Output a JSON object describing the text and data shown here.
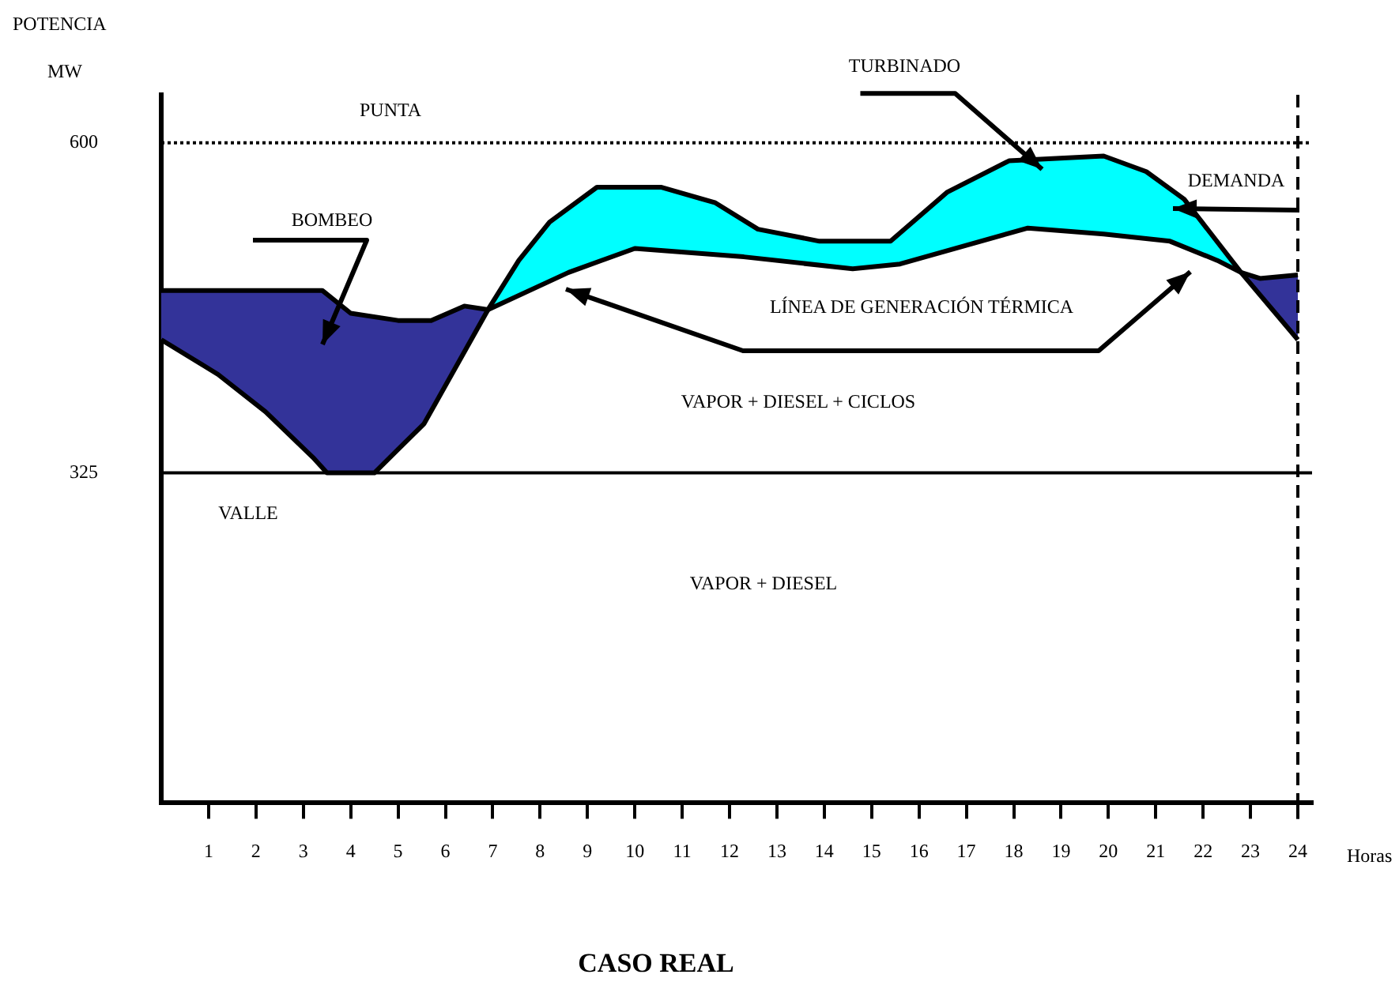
{
  "chart_data": {
    "type": "line",
    "title": "CASO REAL",
    "xlabel": "Horas",
    "ylabel": "POTENCIA\nMW",
    "xlim": [
      0,
      24.3
    ],
    "xticks": [
      1,
      2,
      3,
      4,
      5,
      6,
      7,
      8,
      9,
      10,
      11,
      12,
      13,
      14,
      15,
      16,
      17,
      18,
      19,
      20,
      21,
      22,
      23,
      24
    ],
    "ylim": [
      50,
      640
    ],
    "yticks": [
      325,
      600
    ],
    "grid": false,
    "legend": false,
    "marker": "none",
    "series": [
      {
        "color": "#000000",
        "colors": [
          "#333399",
          "#333399",
          "#333399",
          "#333399",
          "#333399",
          "#333399",
          "#333399",
          "#00ffff",
          "#00ffff",
          "#00ffff",
          "#00ffff",
          "#00ffff",
          "#00ffff",
          "#00ffff",
          "#00ffff",
          "#00ffff",
          "#00ffff",
          "#00ffff",
          "#00ffff",
          "#00ffff",
          "#00ffff",
          "#00ffff",
          "#333399"
        ],
        "x": [
          0,
          1.2,
          2.2,
          3.2,
          3.5,
          4.5,
          5.55,
          6.9,
          7.55,
          8.2,
          9.2,
          10.55,
          11.7,
          12.6,
          13.9,
          15.4,
          16.6,
          17.9,
          19.9,
          20.8,
          21.6,
          22.8,
          24
        ],
        "values": [
          436,
          407,
          376,
          338,
          325,
          325,
          366,
          461,
          502,
          534,
          563,
          563,
          550,
          528,
          518,
          518,
          559,
          585,
          589,
          576,
          553,
          492,
          436
        ]
      },
      {
        "color": "#000000",
        "x": [
          0,
          3.4,
          4,
          5,
          5.7,
          6.4,
          6.9,
          8.6,
          10,
          12.3,
          14.6,
          15.6,
          18.3,
          19.9,
          21.3,
          22.3,
          22.8,
          23.2,
          24
        ],
        "values": [
          477,
          477,
          458,
          452,
          452,
          464,
          461,
          492,
          512,
          505,
          495,
          499,
          529,
          524,
          518,
          502,
          492,
          487,
          490
        ]
      }
    ],
    "ref_lines": [
      {
        "axis": "y",
        "value": 600,
        "label": "PUNTA",
        "line_style": "dotted",
        "color": "#000000"
      },
      {
        "axis": "y",
        "value": 325,
        "label": "VALLE",
        "line_style": "solid",
        "color": "#000000"
      },
      {
        "axis": "x",
        "value": 24,
        "line_style": "dashed",
        "color": "#000000"
      }
    ],
    "annotations": [
      "BOMBEO",
      {
        "text": "TURBINADO",
        "x": 18.6,
        "y": 578
      },
      "DEMANDA",
      "LÍNEA DE GENERACIÓN TÉRMICA",
      "VAPOR + DIESEL + CICLOS",
      "VAPOR + DIESEL"
    ]
  }
}
